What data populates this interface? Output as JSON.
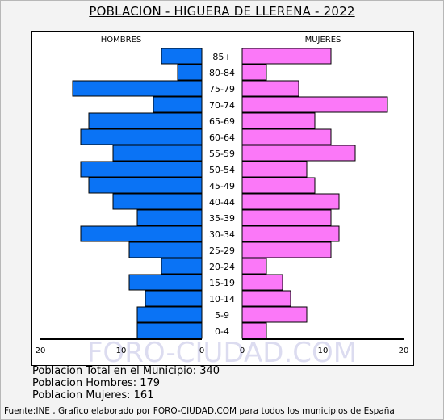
{
  "title": "POBLACION - HIGUERA DE LLERENA - 2022",
  "colors": {
    "male": "#0a73f5",
    "female": "#fb78f8",
    "watermark": "#dcdcf0"
  },
  "watermark": "FORO-CIUDAD.COM",
  "stats": {
    "total": "Poblacion Total en el Municipio: 340",
    "men": "Poblacion Hombres: 179",
    "women": "Poblacion Mujeres: 161"
  },
  "footer": "Fuente:INE , Grafico elaborado por FORO-CIUDAD.COM para todos los municipios de España",
  "chart_data": {
    "type": "bar",
    "orientation": "horizontal-pyramid",
    "left_label": "HOMBRES",
    "right_label": "MUJERES",
    "categories": [
      "85+",
      "80-84",
      "75-79",
      "70-74",
      "65-69",
      "60-64",
      "55-59",
      "50-54",
      "45-49",
      "40-44",
      "35-39",
      "30-34",
      "25-29",
      "20-24",
      "15-19",
      "10-14",
      "5-9",
      "0-4"
    ],
    "series": [
      {
        "name": "HOMBRES",
        "values": [
          5,
          3,
          16,
          6,
          14,
          15,
          11,
          15,
          14,
          11,
          8,
          15,
          9,
          5,
          9,
          7,
          8,
          8
        ]
      },
      {
        "name": "MUJERES",
        "values": [
          11,
          3,
          7,
          18,
          9,
          11,
          14,
          8,
          9,
          12,
          11,
          12,
          11,
          3,
          5,
          6,
          8,
          3
        ]
      }
    ],
    "x_ticks_left": [
      "20",
      "10",
      "0"
    ],
    "x_ticks_right": [
      "0",
      "10",
      "20"
    ],
    "xlim": [
      0,
      20
    ]
  }
}
